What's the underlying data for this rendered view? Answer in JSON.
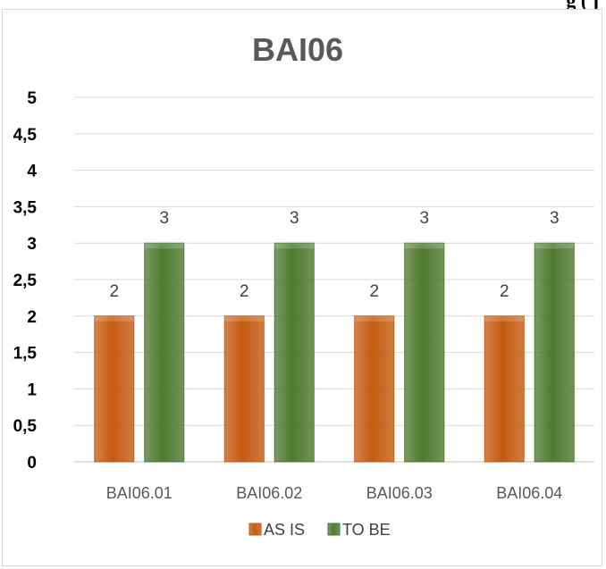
{
  "caption_fragment": "g                                              (    j",
  "chart_data": {
    "type": "bar",
    "title": "BAI06",
    "categories": [
      "BAI06.01",
      "BAI06.02",
      "BAI06.03",
      "BAI06.04"
    ],
    "series": [
      {
        "name": "AS IS",
        "values": [
          2,
          2,
          2,
          2
        ],
        "color": "#c55a11"
      },
      {
        "name": "TO BE",
        "values": [
          3,
          3,
          3,
          3
        ],
        "color": "#4e7a30"
      }
    ],
    "yticks": [
      "0",
      "0,5",
      "1",
      "1,5",
      "2",
      "2,5",
      "3",
      "3,5",
      "4",
      "4,5",
      "5"
    ],
    "ylim": [
      0,
      5
    ],
    "xlabel": "",
    "ylabel": "",
    "grid": true,
    "legend": "bottom"
  }
}
